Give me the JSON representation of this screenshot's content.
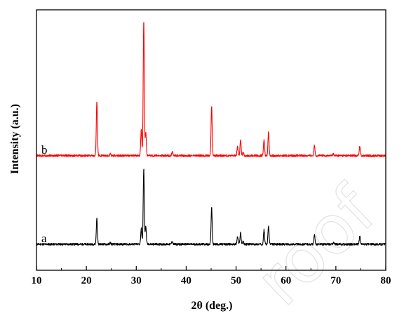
{
  "chart_data": {
    "type": "line",
    "title": "",
    "xlabel": "2θ (deg.)",
    "ylabel": "Intensity (a.u.)",
    "xlim": [
      10,
      80
    ],
    "ylim": [
      0,
      1
    ],
    "x_ticks": [
      10,
      20,
      30,
      40,
      50,
      60,
      70,
      80
    ],
    "y_ticks_shown": false,
    "grid": false,
    "legend": "none",
    "baseline_noise": 0.004,
    "series": [
      {
        "name": "a",
        "color": "#000000",
        "baseline": 0.1,
        "peaks": [
          {
            "x": 22.1,
            "h": 0.1
          },
          {
            "x": 24.8,
            "h": 0.006
          },
          {
            "x": 31.0,
            "h": 0.06
          },
          {
            "x": 31.5,
            "h": 0.29
          },
          {
            "x": 31.9,
            "h": 0.07
          },
          {
            "x": 37.2,
            "h": 0.012
          },
          {
            "x": 45.1,
            "h": 0.14
          },
          {
            "x": 50.3,
            "h": 0.03
          },
          {
            "x": 50.9,
            "h": 0.045
          },
          {
            "x": 51.4,
            "h": 0.01
          },
          {
            "x": 55.6,
            "h": 0.055
          },
          {
            "x": 56.5,
            "h": 0.07
          },
          {
            "x": 65.7,
            "h": 0.035
          },
          {
            "x": 69.5,
            "h": 0.006
          },
          {
            "x": 74.8,
            "h": 0.03
          }
        ]
      },
      {
        "name": "b",
        "color": "#ff0000",
        "baseline": 0.44,
        "peaks": [
          {
            "x": 22.1,
            "h": 0.21
          },
          {
            "x": 24.8,
            "h": 0.008
          },
          {
            "x": 31.0,
            "h": 0.1
          },
          {
            "x": 31.5,
            "h": 0.52
          },
          {
            "x": 31.9,
            "h": 0.09
          },
          {
            "x": 37.2,
            "h": 0.015
          },
          {
            "x": 45.1,
            "h": 0.19
          },
          {
            "x": 50.3,
            "h": 0.035
          },
          {
            "x": 50.9,
            "h": 0.06
          },
          {
            "x": 51.4,
            "h": 0.012
          },
          {
            "x": 55.6,
            "h": 0.06
          },
          {
            "x": 56.5,
            "h": 0.09
          },
          {
            "x": 65.7,
            "h": 0.04
          },
          {
            "x": 69.5,
            "h": 0.008
          },
          {
            "x": 74.8,
            "h": 0.035
          }
        ]
      }
    ]
  },
  "watermark_text": "roof"
}
